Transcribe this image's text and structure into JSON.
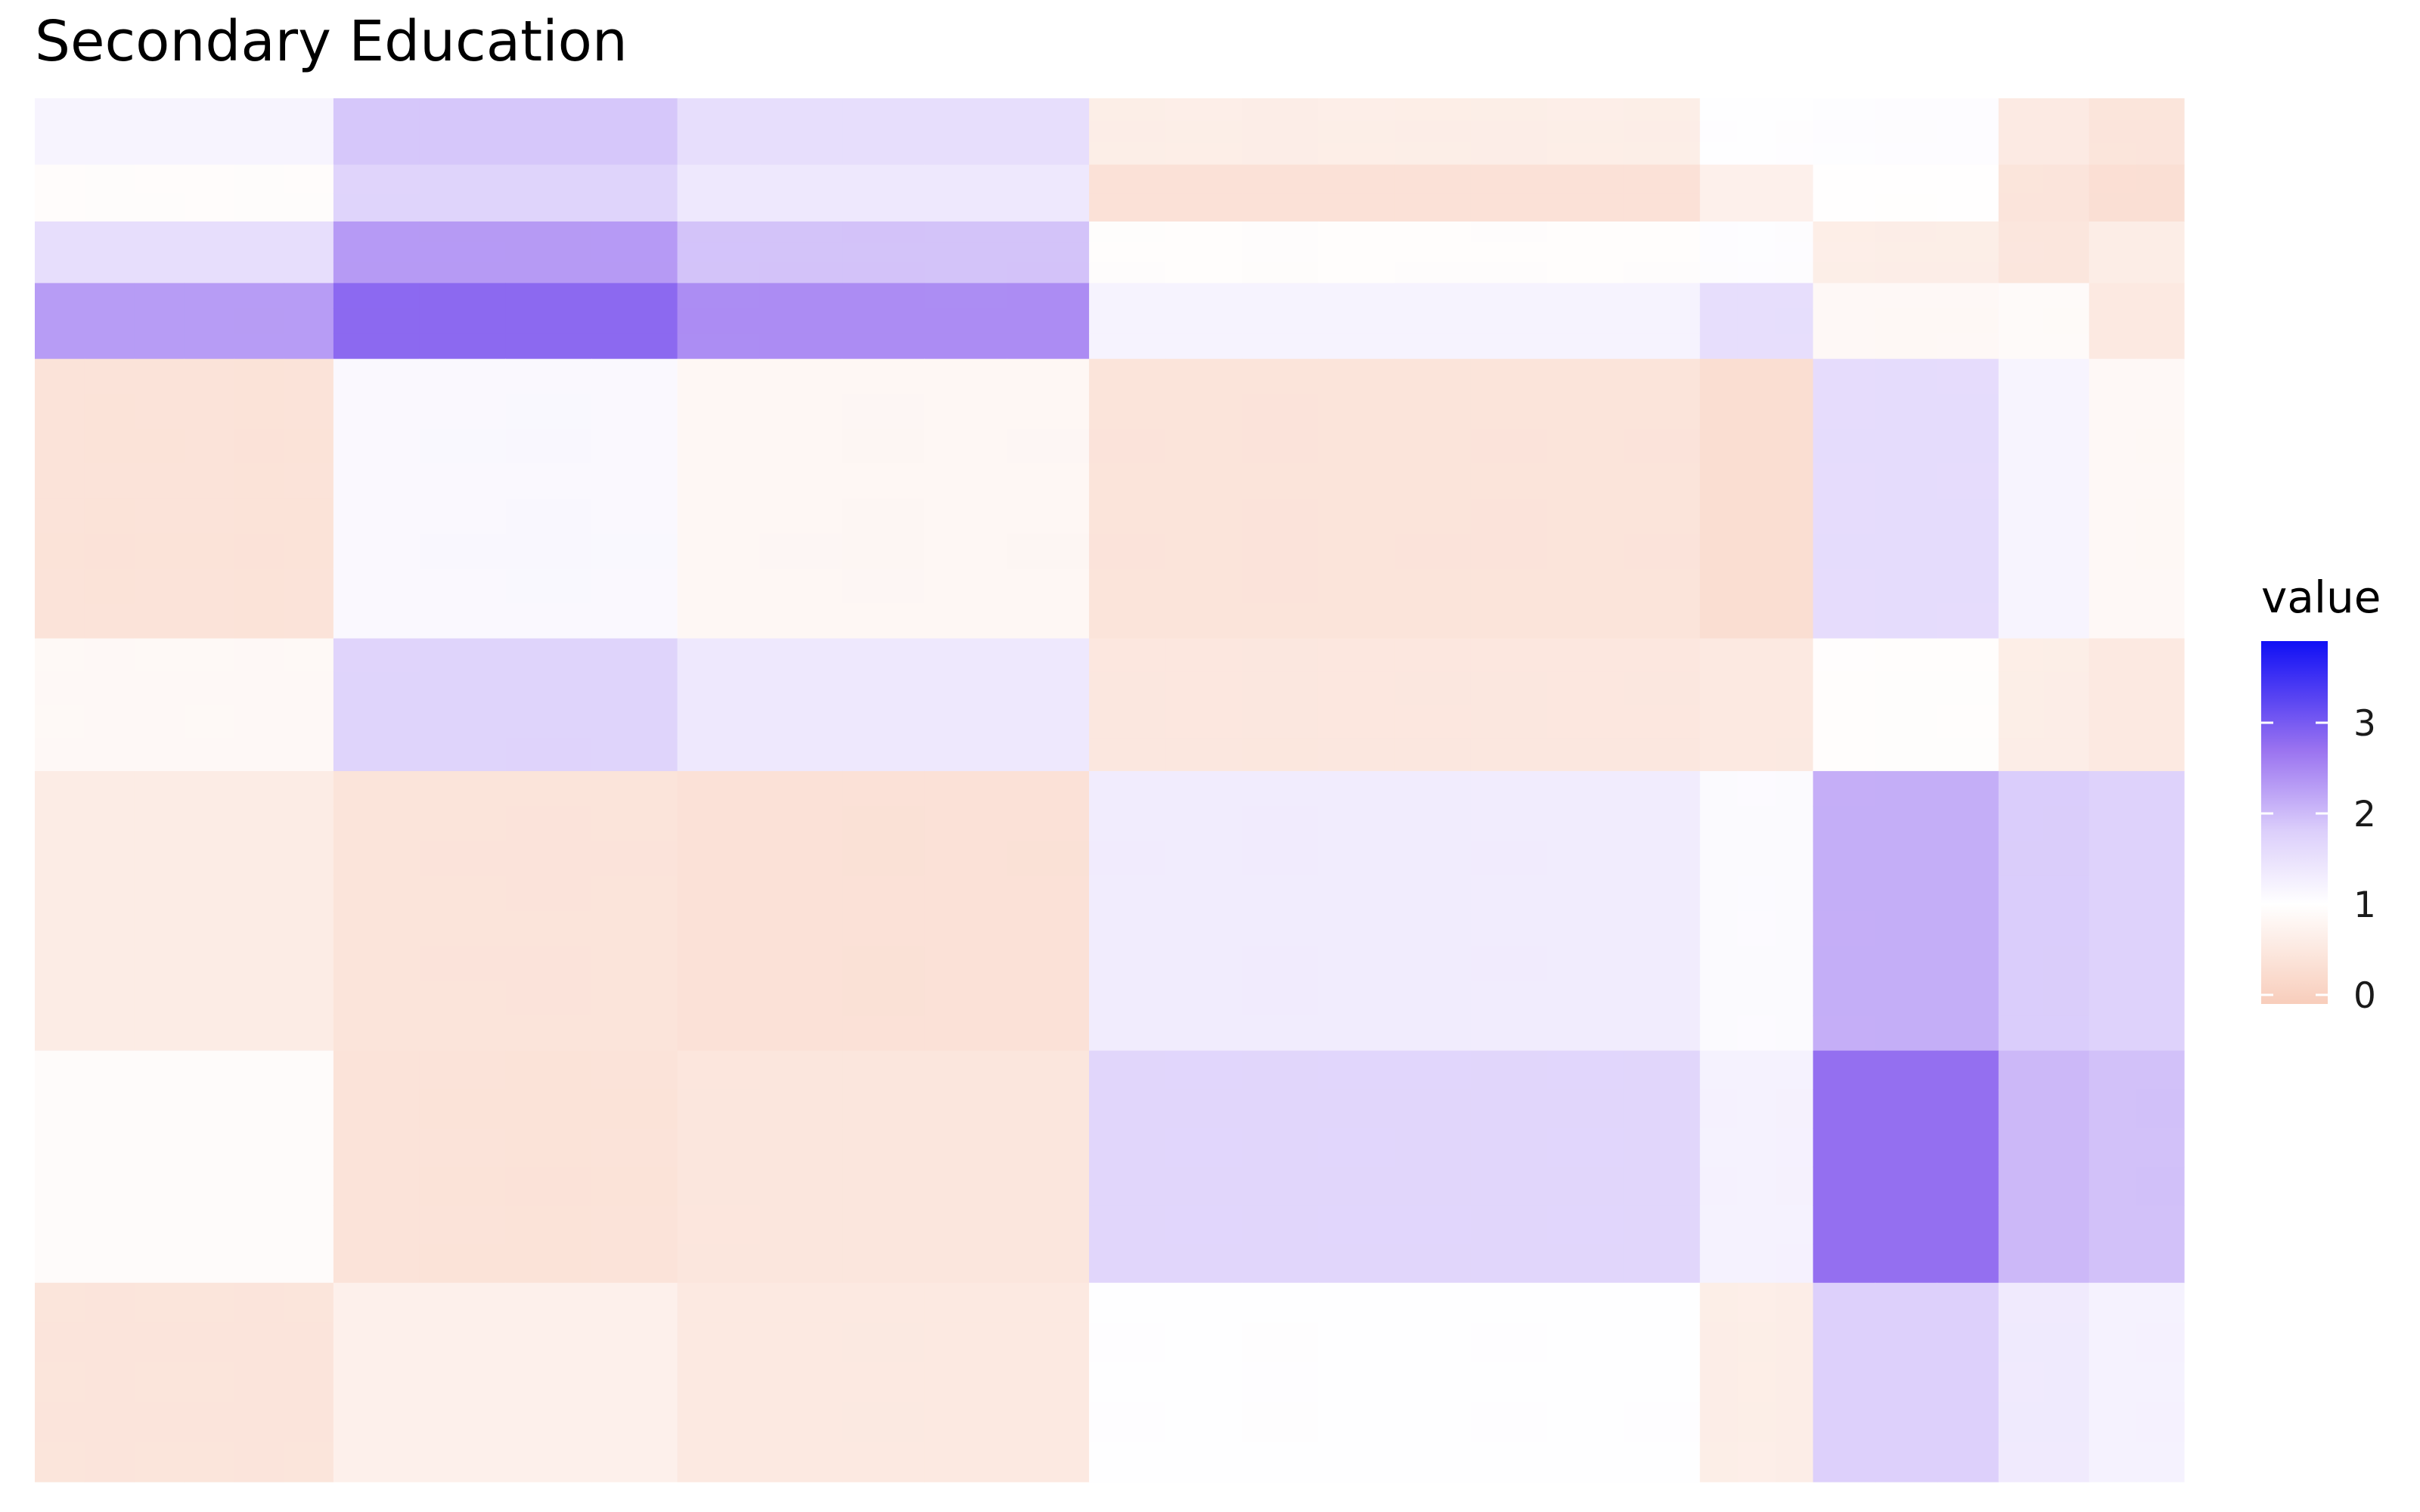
{
  "chart_data": {
    "type": "heatmap",
    "title": "Secondary Education",
    "xlabel": "",
    "ylabel": "",
    "grid": false,
    "legend": {
      "title": "value",
      "position": "right",
      "ticks": [
        "0",
        "1",
        "2",
        "3"
      ],
      "tick_values": [
        0,
        1,
        2,
        3
      ],
      "range": [
        -0.1,
        3.9
      ]
    },
    "color_scale": {
      "low": "#F8CDBB",
      "mid": "#FFFFFF",
      "high": "#1010F5",
      "midpoint": 1,
      "stops": [
        {
          "value": -0.1,
          "color": "#F8CDBB"
        },
        {
          "value": 1.0,
          "color": "#FFFFFF"
        },
        {
          "value": 1.8,
          "color": "#DCCFFB"
        },
        {
          "value": 2.7,
          "color": "#9A73F0"
        },
        {
          "value": 3.9,
          "color": "#1010F5"
        }
      ]
    },
    "column_blocks": [
      {
        "weight": 66,
        "shading": [
          0.0,
          0.05,
          0.02,
          0.0,
          0.06,
          0.03
        ]
      },
      {
        "weight": 76,
        "shading": [
          0.0,
          0.03,
          0.06,
          0.02
        ]
      },
      {
        "weight": 91,
        "shading": [
          0.0,
          0.04,
          0.08,
          0.02,
          0.05
        ]
      },
      {
        "weight": 135,
        "shading": [
          0.04,
          0.0,
          0.07,
          0.0,
          0.02,
          0.05,
          0.0,
          0.03
        ]
      },
      {
        "weight": 25,
        "shading": [
          0.05,
          0.0,
          0.08
        ]
      },
      {
        "weight": 41,
        "shading": [
          0.0,
          0.06,
          0.03
        ]
      },
      {
        "weight": 20,
        "shading": [
          0.02,
          0.05
        ]
      },
      {
        "weight": 21,
        "shading": [
          0.0,
          0.04
        ]
      }
    ],
    "row_blocks": [
      {
        "weight": 14,
        "shading": [
          0.0,
          0.05,
          0.02
        ]
      },
      {
        "weight": 12,
        "shading": [
          0.0,
          0.03
        ]
      },
      {
        "weight": 13,
        "shading": [
          0.02,
          0.0,
          0.05
        ]
      },
      {
        "weight": 16,
        "shading": [
          0.0,
          0.06,
          0.02
        ]
      },
      {
        "weight": 59,
        "shading": [
          0.0,
          0.02,
          0.05,
          0.0,
          0.03,
          0.06,
          0.02,
          0.0
        ]
      },
      {
        "weight": 28,
        "shading": [
          0.0,
          0.04,
          0.02,
          0.06
        ]
      },
      {
        "weight": 59,
        "shading": [
          0.0,
          0.03,
          0.06,
          0.02,
          0.0,
          0.05,
          0.03,
          0.0
        ]
      },
      {
        "weight": 49,
        "shading": [
          0.0,
          0.04,
          0.02,
          0.05,
          0.0,
          0.03
        ]
      },
      {
        "weight": 42,
        "shading": [
          0.0,
          0.05,
          0.02,
          0.06,
          0.0
        ]
      }
    ],
    "values": [
      [
        1.18,
        1.88,
        1.55,
        0.62,
        1.02,
        1.04,
        0.55,
        0.42
      ],
      [
        0.94,
        1.72,
        1.38,
        0.35,
        0.68,
        0.98,
        0.42,
        0.3
      ],
      [
        1.55,
        2.32,
        1.92,
        0.95,
        1.04,
        0.62,
        0.46,
        0.6
      ],
      [
        2.3,
        2.82,
        2.45,
        1.2,
        1.55,
        0.85,
        0.9,
        0.52
      ],
      [
        0.38,
        1.12,
        0.82,
        0.4,
        0.28,
        1.58,
        1.18,
        0.85
      ],
      [
        0.86,
        1.72,
        1.38,
        0.48,
        0.52,
        0.96,
        0.62,
        0.52
      ],
      [
        0.58,
        0.4,
        0.35,
        1.32,
        1.08,
        2.12,
        1.82,
        1.75
      ],
      [
        0.92,
        0.38,
        0.45,
        1.68,
        1.22,
        2.75,
        2.02,
        1.94
      ],
      [
        0.42,
        0.68,
        0.52,
        1.02,
        0.62,
        1.78,
        1.35,
        1.22
      ]
    ]
  }
}
